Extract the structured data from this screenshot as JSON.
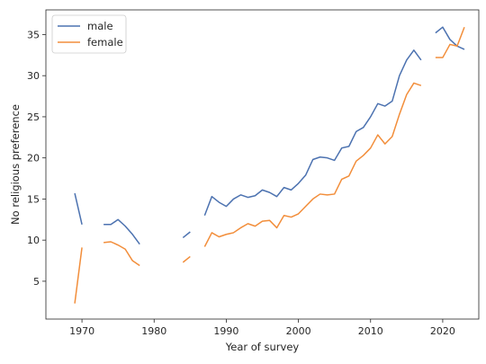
{
  "chart_data": {
    "type": "line",
    "title": "",
    "xlabel": "Year of survey",
    "ylabel": "No religious preference",
    "xlim": [
      1965,
      2025
    ],
    "ylim": [
      0.4,
      38.0
    ],
    "xticks": [
      1970,
      1980,
      1990,
      2000,
      2010,
      2020
    ],
    "yticks": [
      5,
      10,
      15,
      20,
      25,
      30,
      35
    ],
    "grid": false,
    "legend": {
      "placement": "top-left"
    },
    "x": [
      1969,
      1970,
      1971,
      1972,
      1973,
      1974,
      1975,
      1976,
      1977,
      1978,
      1979,
      1980,
      1981,
      1982,
      1983,
      1984,
      1985,
      1986,
      1987,
      1988,
      1989,
      1990,
      1991,
      1992,
      1993,
      1994,
      1995,
      1996,
      1997,
      1998,
      1999,
      2000,
      2001,
      2002,
      2003,
      2004,
      2005,
      2006,
      2007,
      2008,
      2009,
      2010,
      2011,
      2012,
      2013,
      2014,
      2015,
      2016,
      2017,
      2018,
      2019,
      2020,
      2021,
      2022,
      2023
    ],
    "series": [
      {
        "name": "male",
        "color": "#4c72b0",
        "values": [
          15.7,
          11.9,
          null,
          null,
          11.9,
          11.9,
          12.5,
          11.7,
          10.7,
          9.5,
          null,
          null,
          null,
          null,
          null,
          10.3,
          11.0,
          null,
          13.0,
          15.3,
          14.6,
          14.1,
          15.0,
          15.5,
          15.2,
          15.4,
          16.1,
          15.8,
          15.3,
          16.4,
          16.1,
          16.9,
          17.9,
          19.8,
          20.1,
          20.0,
          19.7,
          21.2,
          21.4,
          23.2,
          23.7,
          25.0,
          26.6,
          26.3,
          26.9,
          30.0,
          31.9,
          33.1,
          31.9,
          null,
          35.2,
          35.9,
          34.4,
          33.6,
          33.2
        ]
      },
      {
        "name": "female",
        "color": "#f28e3b",
        "values": [
          2.3,
          9.1,
          null,
          null,
          9.7,
          9.8,
          9.4,
          8.9,
          7.5,
          6.9,
          null,
          null,
          null,
          null,
          null,
          7.3,
          8.0,
          null,
          9.2,
          10.9,
          10.4,
          10.7,
          10.9,
          11.5,
          12.0,
          11.7,
          12.3,
          12.4,
          11.5,
          13.0,
          12.8,
          13.2,
          14.1,
          15.0,
          15.6,
          15.5,
          15.6,
          17.4,
          17.8,
          19.6,
          20.3,
          21.2,
          22.8,
          21.7,
          22.6,
          25.3,
          27.7,
          29.1,
          28.8,
          null,
          32.2,
          32.2,
          33.8,
          33.6,
          35.9
        ]
      }
    ]
  }
}
